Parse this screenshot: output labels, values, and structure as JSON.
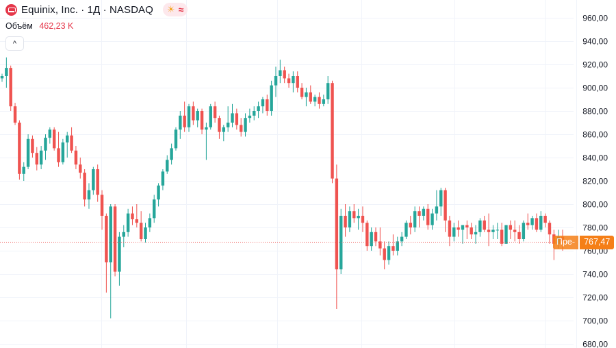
{
  "header": {
    "title": "Equinix, Inc. · 1Д · NASDAQ",
    "volume_label": "Объём",
    "volume_value": "462,23 K",
    "collapse_glyph": "^"
  },
  "price_tag": {
    "prefix": "Пре-",
    "value": "767,47"
  },
  "colors": {
    "up": "#26a69a",
    "down": "#ef5350",
    "accent": "#f57f17",
    "brand": "#e5374a"
  },
  "chart_data": {
    "type": "candlestick",
    "ylim": [
      680,
      960
    ],
    "yticks": [
      "960,00",
      "940,00",
      "920,00",
      "900,00",
      "880,00",
      "860,00",
      "840,00",
      "820,00",
      "800,00",
      "780,00",
      "760,00",
      "740,00",
      "720,00",
      "700,00",
      "680,00"
    ],
    "current_price": 767.47,
    "grid": true,
    "candles": [
      [
        908,
        912,
        905,
        910
      ],
      [
        910,
        926,
        900,
        917
      ],
      [
        917,
        919,
        880,
        884
      ],
      [
        884,
        887,
        868,
        870
      ],
      [
        870,
        872,
        821,
        826
      ],
      [
        826,
        836,
        820,
        832
      ],
      [
        832,
        860,
        830,
        856
      ],
      [
        856,
        859,
        840,
        844
      ],
      [
        844,
        849,
        829,
        834
      ],
      [
        834,
        850,
        830,
        846
      ],
      [
        846,
        860,
        838,
        857
      ],
      [
        857,
        866,
        852,
        864
      ],
      [
        864,
        866,
        846,
        848
      ],
      [
        848,
        862,
        832,
        836
      ],
      [
        836,
        856,
        834,
        853
      ],
      [
        853,
        862,
        840,
        859
      ],
      [
        859,
        866,
        844,
        846
      ],
      [
        846,
        850,
        830,
        834
      ],
      [
        834,
        840,
        822,
        827
      ],
      [
        827,
        830,
        798,
        804
      ],
      [
        804,
        818,
        796,
        812
      ],
      [
        812,
        832,
        808,
        830
      ],
      [
        830,
        834,
        802,
        808
      ],
      [
        808,
        812,
        778,
        790
      ],
      [
        790,
        792,
        724,
        750
      ],
      [
        750,
        800,
        702,
        798
      ],
      [
        798,
        800,
        738,
        742
      ],
      [
        742,
        776,
        730,
        772
      ],
      [
        772,
        782,
        763,
        776
      ],
      [
        776,
        796,
        772,
        792
      ],
      [
        792,
        798,
        782,
        787
      ],
      [
        787,
        800,
        780,
        784
      ],
      [
        784,
        794,
        768,
        770
      ],
      [
        770,
        784,
        767,
        780
      ],
      [
        780,
        792,
        776,
        788
      ],
      [
        788,
        808,
        784,
        804
      ],
      [
        804,
        818,
        798,
        816
      ],
      [
        816,
        830,
        812,
        828
      ],
      [
        828,
        842,
        826,
        838
      ],
      [
        838,
        852,
        834,
        848
      ],
      [
        848,
        866,
        846,
        864
      ],
      [
        864,
        880,
        856,
        876
      ],
      [
        876,
        888,
        862,
        866
      ],
      [
        866,
        886,
        862,
        884
      ],
      [
        884,
        888,
        868,
        872
      ],
      [
        872,
        882,
        866,
        880
      ],
      [
        880,
        882,
        860,
        864
      ],
      [
        864,
        870,
        838,
        866
      ],
      [
        866,
        886,
        864,
        884
      ],
      [
        884,
        888,
        870,
        874
      ],
      [
        874,
        876,
        856,
        862
      ],
      [
        862,
        868,
        854,
        866
      ],
      [
        866,
        884,
        862,
        870
      ],
      [
        870,
        886,
        866,
        878
      ],
      [
        878,
        882,
        864,
        868
      ],
      [
        868,
        874,
        858,
        862
      ],
      [
        862,
        878,
        858,
        874
      ],
      [
        874,
        882,
        870,
        876
      ],
      [
        876,
        884,
        872,
        880
      ],
      [
        880,
        888,
        874,
        884
      ],
      [
        884,
        892,
        878,
        890
      ],
      [
        890,
        894,
        876,
        880
      ],
      [
        880,
        906,
        876,
        902
      ],
      [
        902,
        918,
        892,
        910
      ],
      [
        910,
        924,
        904,
        915
      ],
      [
        915,
        918,
        904,
        908
      ],
      [
        908,
        912,
        900,
        904
      ],
      [
        904,
        914,
        896,
        910
      ],
      [
        910,
        914,
        896,
        900
      ],
      [
        900,
        904,
        890,
        892
      ],
      [
        892,
        900,
        884,
        896
      ],
      [
        896,
        902,
        886,
        888
      ],
      [
        888,
        894,
        884,
        892
      ],
      [
        892,
        896,
        882,
        886
      ],
      [
        886,
        894,
        884,
        890
      ],
      [
        890,
        910,
        886,
        904
      ],
      [
        904,
        906,
        818,
        822
      ],
      [
        822,
        834,
        710,
        744
      ],
      [
        744,
        796,
        740,
        790
      ],
      [
        790,
        800,
        772,
        780
      ],
      [
        780,
        798,
        776,
        794
      ],
      [
        794,
        800,
        784,
        788
      ],
      [
        788,
        796,
        778,
        790
      ],
      [
        790,
        798,
        776,
        784
      ],
      [
        784,
        786,
        760,
        764
      ],
      [
        764,
        780,
        760,
        776
      ],
      [
        776,
        780,
        764,
        768
      ],
      [
        768,
        780,
        756,
        762
      ],
      [
        762,
        768,
        744,
        752
      ],
      [
        752,
        768,
        748,
        764
      ],
      [
        764,
        774,
        756,
        760
      ],
      [
        760,
        772,
        756,
        768
      ],
      [
        768,
        776,
        764,
        772
      ],
      [
        772,
        786,
        770,
        784
      ],
      [
        784,
        790,
        774,
        780
      ],
      [
        780,
        798,
        776,
        794
      ],
      [
        794,
        798,
        780,
        790
      ],
      [
        790,
        798,
        786,
        796
      ],
      [
        796,
        800,
        778,
        782
      ],
      [
        782,
        796,
        778,
        792
      ],
      [
        792,
        812,
        786,
        798
      ],
      [
        798,
        814,
        790,
        812
      ],
      [
        812,
        814,
        776,
        786
      ],
      [
        786,
        790,
        764,
        772
      ],
      [
        772,
        784,
        768,
        780
      ],
      [
        780,
        786,
        772,
        778
      ],
      [
        778,
        782,
        766,
        782
      ],
      [
        782,
        786,
        770,
        780
      ],
      [
        780,
        784,
        770,
        774
      ],
      [
        774,
        782,
        766,
        776
      ],
      [
        776,
        788,
        772,
        786
      ],
      [
        786,
        790,
        776,
        778
      ],
      [
        778,
        792,
        764,
        776
      ],
      [
        776,
        782,
        770,
        778
      ],
      [
        778,
        784,
        770,
        778
      ],
      [
        778,
        784,
        764,
        766
      ],
      [
        766,
        782,
        766,
        782
      ],
      [
        782,
        786,
        770,
        778
      ],
      [
        778,
        786,
        768,
        776
      ],
      [
        776,
        782,
        766,
        770
      ],
      [
        770,
        786,
        768,
        784
      ],
      [
        784,
        792,
        778,
        782
      ],
      [
        782,
        790,
        778,
        788
      ],
      [
        788,
        792,
        776,
        778
      ],
      [
        778,
        794,
        776,
        790
      ],
      [
        790,
        792,
        780,
        784
      ],
      [
        784,
        786,
        766,
        774
      ],
      [
        774,
        778,
        752,
        766
      ],
      [
        766,
        778,
        762,
        772
      ],
      [
        772,
        778,
        760,
        768
      ]
    ]
  }
}
